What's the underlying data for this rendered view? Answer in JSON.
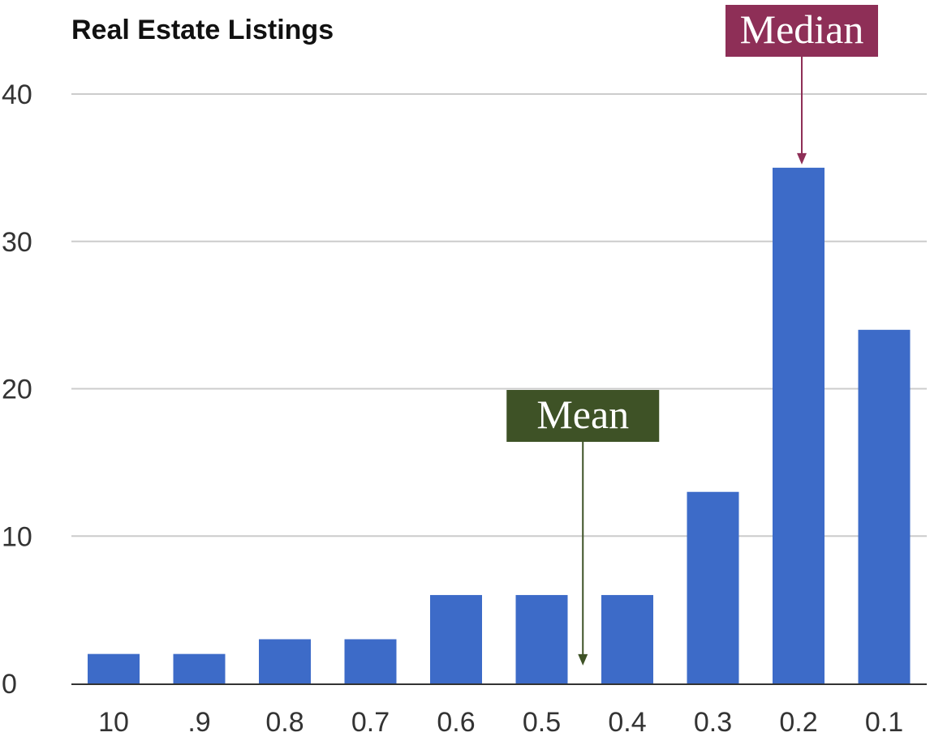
{
  "chart_data": {
    "type": "bar",
    "title": "Real Estate Listings",
    "xlabel": "",
    "ylabel": "",
    "categories": [
      "10",
      ".9",
      "0.8",
      "0.7",
      "0.6",
      "0.5",
      "0.4",
      "0.3",
      "0.2",
      "0.1"
    ],
    "values": [
      2,
      2,
      3,
      3,
      6,
      6,
      6,
      13,
      35,
      24
    ],
    "ylim": [
      0,
      40
    ],
    "yticks": [
      "0",
      "10",
      "20",
      "30",
      "40"
    ],
    "grid": true,
    "bar_color": "#3d6bc8",
    "annotations": [
      {
        "text": "Median",
        "color": "#8e2f57",
        "category": "0.2",
        "arrow_to": 35
      },
      {
        "text": "Mean",
        "color": "#3e5226",
        "between": [
          "0.5",
          "0.4"
        ],
        "arrow_to": 1
      }
    ]
  }
}
